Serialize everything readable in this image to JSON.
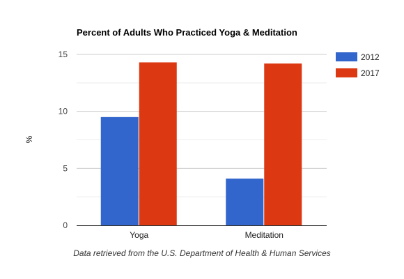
{
  "chart_data": {
    "type": "bar",
    "title": "Percent of Adults Who Practiced Yoga & Meditation",
    "ylabel": "%",
    "xlabel": "",
    "categories": [
      "Yoga",
      "Meditation"
    ],
    "series": [
      {
        "name": "2012",
        "values": [
          9.5,
          4.1
        ],
        "color": "#3366cc"
      },
      {
        "name": "2017",
        "values": [
          14.3,
          14.2
        ],
        "color": "#dc3912"
      }
    ],
    "ylim": [
      0,
      15
    ],
    "yticks": [
      "0",
      "5",
      "10",
      "15"
    ],
    "grid": true,
    "legend": "right"
  },
  "caption": "Data retrieved from the U.S. Department of Health & Human Services"
}
